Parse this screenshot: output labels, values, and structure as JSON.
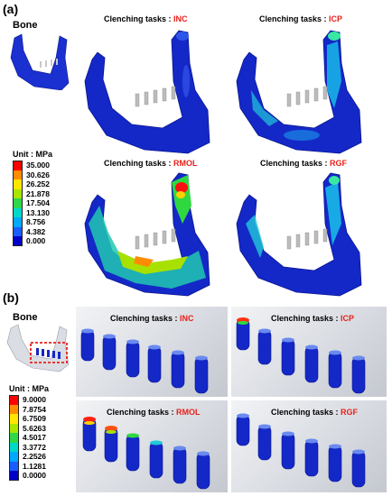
{
  "panel_a": {
    "label": "(a)",
    "bone_label": "Bone",
    "legend": {
      "title": "Unit : MPa",
      "values": [
        "35.000",
        "30.626",
        "26.252",
        "21.878",
        "17.504",
        "13.130",
        "8.756",
        "4.382",
        "0.000"
      ],
      "colors": [
        "#ff0000",
        "#ff8c00",
        "#ffe600",
        "#a8e600",
        "#2fd84a",
        "#00d8c8",
        "#00a8ff",
        "#1a5cff",
        "#0000c8"
      ]
    },
    "views": [
      {
        "prefix": "Clenching tasks : ",
        "code": "INC",
        "stress": "low"
      },
      {
        "prefix": "Clenching tasks : ",
        "code": "ICP",
        "stress": "medium"
      },
      {
        "prefix": "Clenching tasks : ",
        "code": "RMOL",
        "stress": "high"
      },
      {
        "prefix": "Clenching tasks : ",
        "code": "RGF",
        "stress": "medium-low"
      }
    ]
  },
  "panel_b": {
    "label": "(b)",
    "bone_label": "Bone",
    "legend": {
      "title": "Unit : MPa",
      "values": [
        "9.0000",
        "7.8754",
        "6.7509",
        "5.6263",
        "4.5017",
        "3.3772",
        "2.2526",
        "1.1281",
        "0.0000"
      ],
      "colors": [
        "#ff0000",
        "#ff8c00",
        "#ffe600",
        "#a8e600",
        "#2fd84a",
        "#00d8c8",
        "#00a8ff",
        "#1a5cff",
        "#0000c8"
      ]
    },
    "views": [
      {
        "prefix": "Clenching tasks : ",
        "code": "INC"
      },
      {
        "prefix": "Clenching tasks : ",
        "code": "ICP"
      },
      {
        "prefix": "Clenching tasks : ",
        "code": "RMOL"
      },
      {
        "prefix": "Clenching tasks : ",
        "code": "RGF"
      }
    ]
  },
  "colors": {
    "task_code": "#e8201a",
    "bone_blue": "#1428c8",
    "highlight_box": "#e8201a"
  }
}
